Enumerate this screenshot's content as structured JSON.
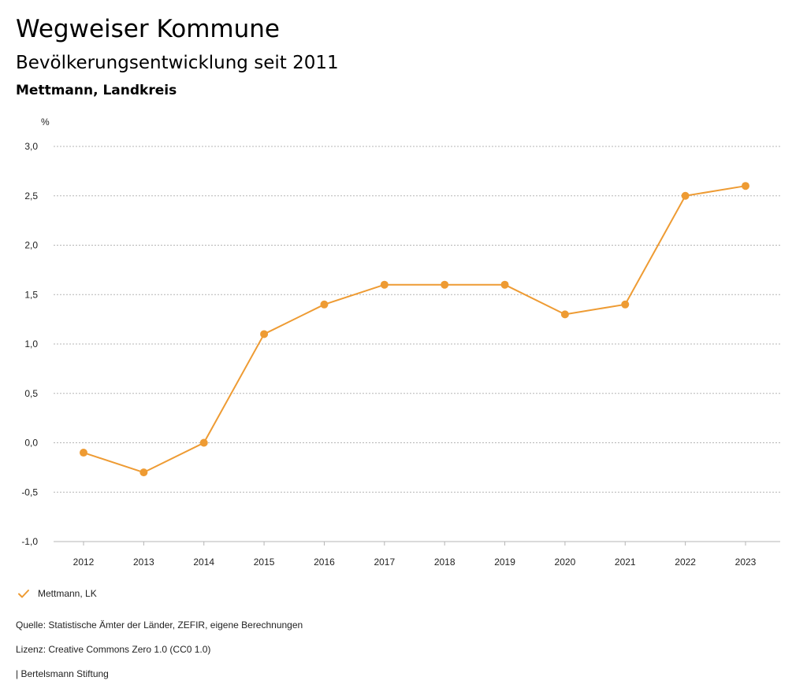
{
  "header": {
    "title": "Wegweiser Kommune",
    "subtitle": "Bevölkerungsentwicklung seit 2011",
    "region": "Mettmann, Landkreis"
  },
  "chart_data": {
    "type": "line",
    "ylabel": "%",
    "xlabel": "",
    "x": [
      "2012",
      "2013",
      "2014",
      "2015",
      "2016",
      "2017",
      "2018",
      "2019",
      "2020",
      "2021",
      "2022",
      "2023"
    ],
    "series": [
      {
        "name": "Mettmann, LK",
        "color": "#ee9b33",
        "values": [
          -0.1,
          -0.3,
          0.0,
          1.1,
          1.4,
          1.6,
          1.6,
          1.6,
          1.3,
          1.4,
          2.5,
          2.6
        ]
      }
    ],
    "ylim": [
      -1.0,
      3.0
    ],
    "yticks": [
      3.0,
      2.5,
      2.0,
      1.5,
      1.0,
      0.5,
      0.0,
      -0.5,
      -1.0
    ],
    "ytick_labels": [
      "3,0",
      "2,5",
      "2,0",
      "1,5",
      "1,0",
      "0,5",
      "0,0",
      "-0,5",
      "-1,0"
    ],
    "grid": "horizontal dotted",
    "legend_position": "bottom-left"
  },
  "legend": {
    "label": "Mettmann, LK",
    "icon": "check-icon"
  },
  "footer": {
    "source": "Quelle: Statistische Ämter der Länder, ZEFIR, eigene Berechnungen",
    "license": "Lizenz: Creative Commons Zero 1.0 (CC0 1.0)",
    "credit": "| Bertelsmann Stiftung"
  }
}
